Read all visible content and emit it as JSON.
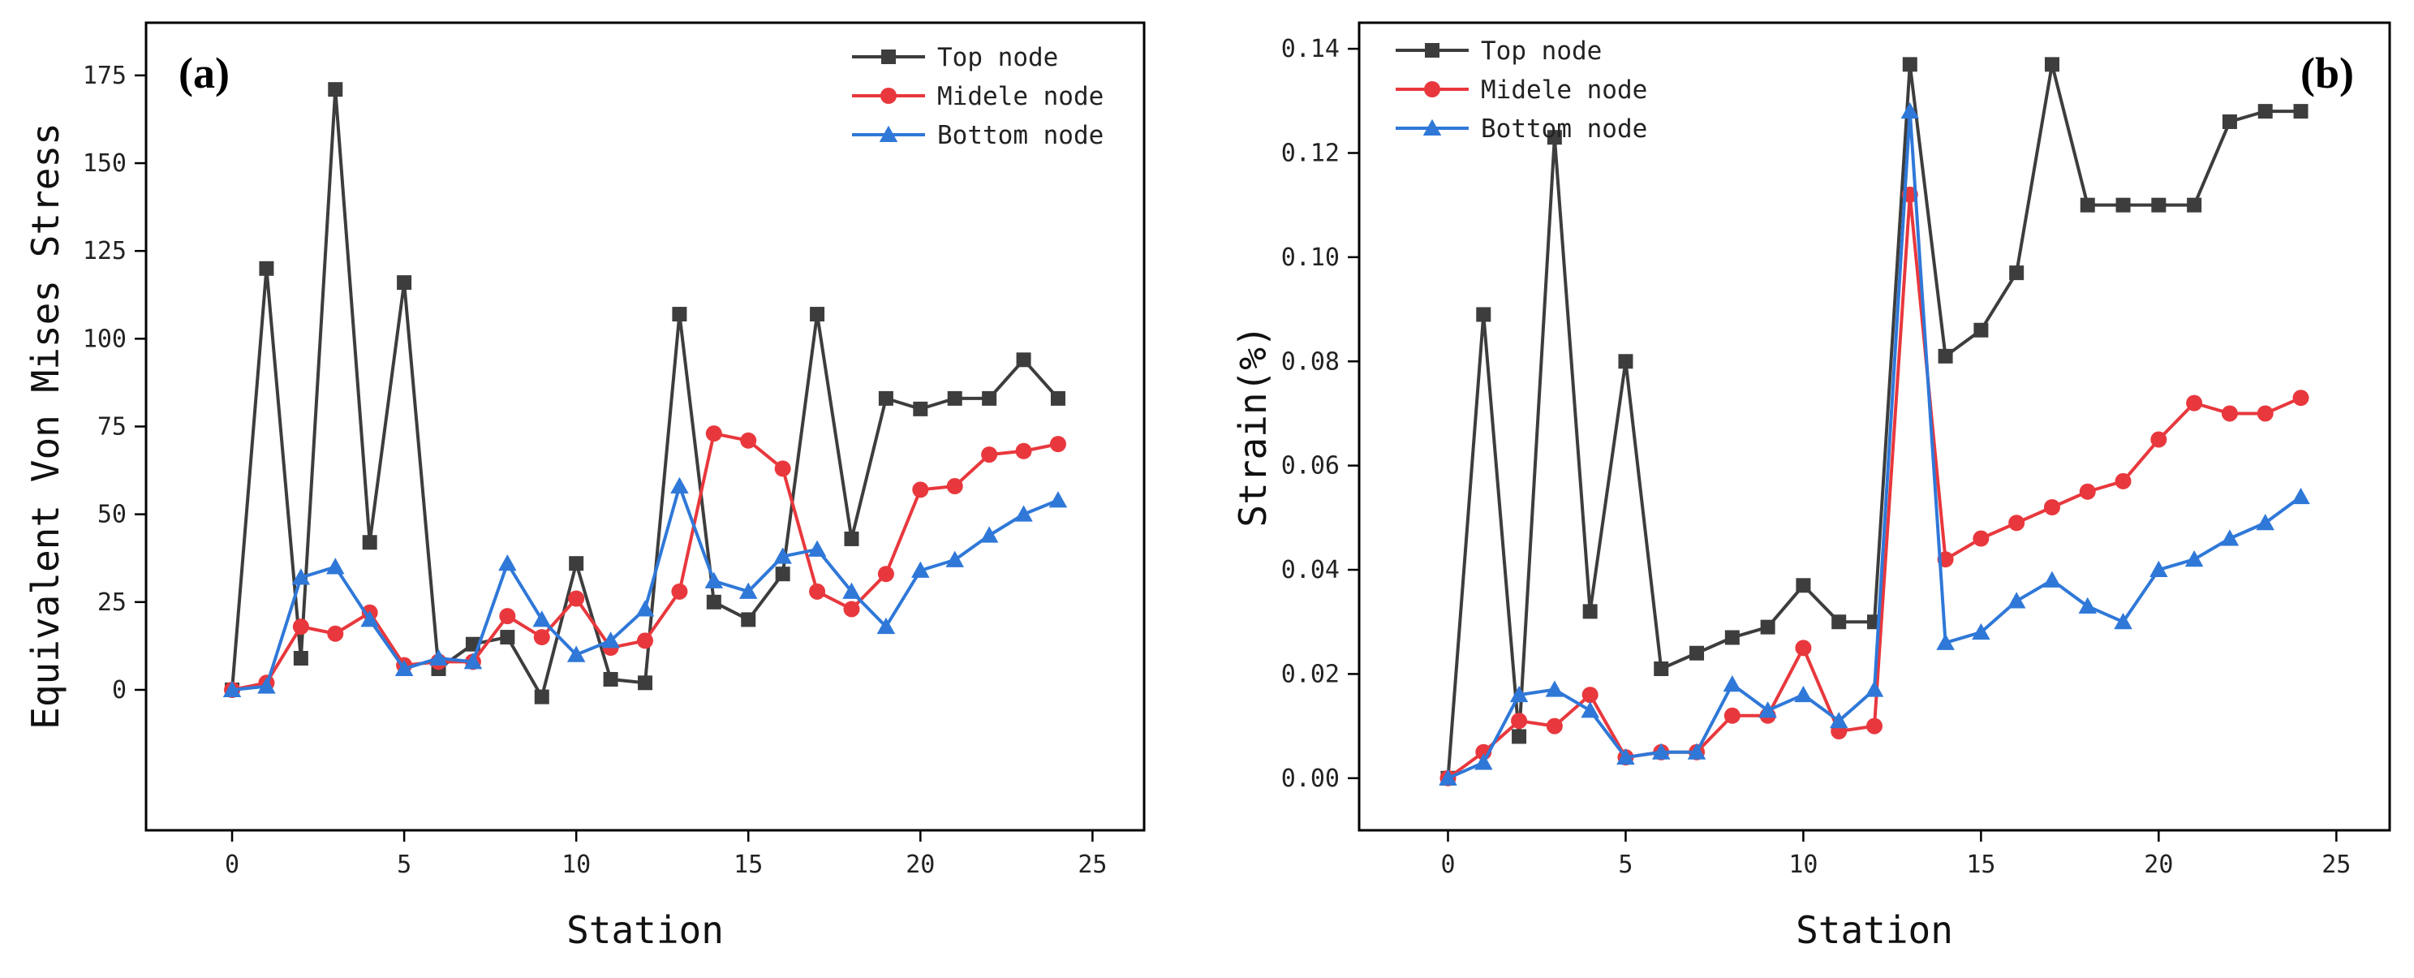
{
  "colors": {
    "top": "#3d3d3d",
    "middle": "#e8383d",
    "bottom": "#2f78d8",
    "axis": "#000000"
  },
  "chart_data": [
    {
      "type": "line",
      "panel_label": "(a)",
      "xlabel": "Station",
      "ylabel": "Equivalent Von Mises Stress",
      "xlim": [
        -2.5,
        26.5
      ],
      "ylim": [
        -40,
        190
      ],
      "xticks": [
        0,
        5,
        10,
        15,
        20,
        25
      ],
      "yticks": [
        0,
        25,
        50,
        75,
        100,
        125,
        150,
        175
      ],
      "xtick_labels": [
        "0",
        "5",
        "10",
        "15",
        "20",
        "25"
      ],
      "ytick_labels": [
        "0",
        "25",
        "50",
        "75",
        "100",
        "125",
        "150",
        "175"
      ],
      "legend_position": "top-right",
      "x": [
        0,
        1,
        2,
        3,
        4,
        5,
        6,
        7,
        8,
        9,
        10,
        11,
        12,
        13,
        14,
        15,
        16,
        17,
        18,
        19,
        20,
        21,
        22,
        23,
        24
      ],
      "series": [
        {
          "name": "Top node",
          "key": "top",
          "marker": "square",
          "values": [
            0,
            120,
            9,
            171,
            42,
            116,
            6,
            13,
            15,
            -2,
            36,
            3,
            2,
            107,
            25,
            20,
            33,
            107,
            43,
            83,
            80,
            83,
            83,
            94,
            83
          ]
        },
        {
          "name": "Midele node",
          "key": "middle",
          "marker": "circle",
          "values": [
            0,
            2,
            18,
            16,
            22,
            7,
            8,
            8,
            21,
            15,
            26,
            12,
            14,
            28,
            73,
            71,
            63,
            28,
            23,
            33,
            57,
            58,
            67,
            68,
            70
          ]
        },
        {
          "name": "Bottom node",
          "key": "bottom",
          "marker": "triangle",
          "values": [
            0,
            1,
            32,
            35,
            20,
            6,
            9,
            8,
            36,
            20,
            10,
            14,
            23,
            58,
            31,
            28,
            38,
            40,
            28,
            18,
            34,
            37,
            44,
            50,
            54
          ]
        }
      ]
    },
    {
      "type": "line",
      "panel_label": "(b)",
      "xlabel": "Station",
      "ylabel": "Strain(%)",
      "xlim": [
        -2.5,
        26.5
      ],
      "ylim": [
        -0.01,
        0.145
      ],
      "xticks": [
        0,
        5,
        10,
        15,
        20,
        25
      ],
      "yticks": [
        0,
        0.02,
        0.04,
        0.06,
        0.08,
        0.1,
        0.12,
        0.14
      ],
      "xtick_labels": [
        "0",
        "5",
        "10",
        "15",
        "20",
        "25"
      ],
      "ytick_labels": [
        "0.00",
        "0.02",
        "0.04",
        "0.06",
        "0.08",
        "0.10",
        "0.12",
        "0.14"
      ],
      "legend_position": "top-left",
      "x": [
        0,
        1,
        2,
        3,
        4,
        5,
        6,
        7,
        8,
        9,
        10,
        11,
        12,
        13,
        14,
        15,
        16,
        17,
        18,
        19,
        20,
        21,
        22,
        23,
        24
      ],
      "series": [
        {
          "name": "Top node",
          "key": "top",
          "marker": "square",
          "values": [
            0,
            0.089,
            0.008,
            0.123,
            0.032,
            0.08,
            0.021,
            0.024,
            0.027,
            0.029,
            0.037,
            0.03,
            0.03,
            0.137,
            0.081,
            0.086,
            0.097,
            0.137,
            0.11,
            0.11,
            0.11,
            0.11,
            0.126,
            0.128,
            0.128
          ]
        },
        {
          "name": "Midele node",
          "key": "middle",
          "marker": "circle",
          "values": [
            0,
            0.005,
            0.011,
            0.01,
            0.016,
            0.004,
            0.005,
            0.005,
            0.012,
            0.012,
            0.025,
            0.009,
            0.01,
            0.112,
            0.042,
            0.046,
            0.049,
            0.052,
            0.055,
            0.057,
            0.065,
            0.072,
            0.07,
            0.07,
            0.073
          ]
        },
        {
          "name": "Bottom node",
          "key": "bottom",
          "marker": "triangle",
          "values": [
            0,
            0.003,
            0.016,
            0.017,
            0.013,
            0.004,
            0.005,
            0.005,
            0.018,
            0.013,
            0.016,
            0.011,
            0.017,
            0.128,
            0.026,
            0.028,
            0.034,
            0.038,
            0.033,
            0.03,
            0.04,
            0.042,
            0.046,
            0.049,
            0.054
          ]
        }
      ]
    }
  ]
}
